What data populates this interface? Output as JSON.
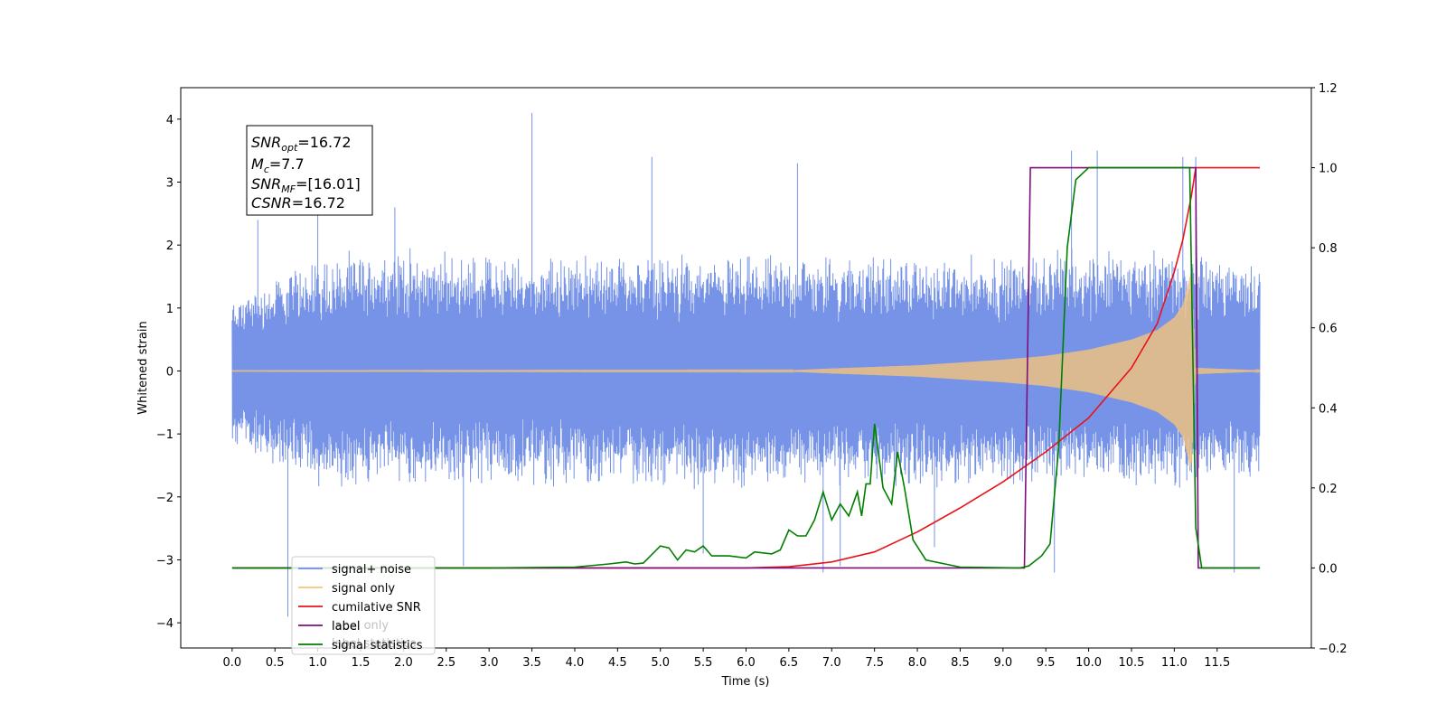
{
  "chart_data": {
    "type": "line",
    "xlabel": "Time (s)",
    "ylabel": "Whitened strain",
    "xlim": [
      -0.6,
      12.6
    ],
    "ylim": [
      -4.4,
      4.5
    ],
    "y2lim": [
      -0.2,
      1.2
    ],
    "grid": false,
    "legend_position": "lower-left",
    "x_ticks": [
      "0.0",
      "0.5",
      "1.0",
      "1.5",
      "2.0",
      "2.5",
      "3.0",
      "3.5",
      "4.0",
      "4.5",
      "5.0",
      "5.5",
      "6.0",
      "6.5",
      "7.0",
      "7.5",
      "8.0",
      "8.5",
      "9.0",
      "9.5",
      "10.0",
      "10.5",
      "11.0",
      "11.5"
    ],
    "y_ticks": [
      "4",
      "3",
      "2",
      "1",
      "0",
      "−1",
      "−2",
      "−3",
      "−4"
    ],
    "y2_ticks": [
      "1.2",
      "1.0",
      "0.8",
      "0.6",
      "0.4",
      "0.2",
      "0.0",
      "−0.2"
    ],
    "annotation": {
      "lines": [
        {
          "base": "SNR",
          "sub": "opt",
          "value": "=16.72"
        },
        {
          "base": "M",
          "sub": "c",
          "value": "=7.7"
        },
        {
          "base": "SNR",
          "sub": "MF",
          "value": "=[16.01]"
        },
        {
          "base": "CSNR",
          "sub": "",
          "value": "=16.72"
        }
      ]
    },
    "series": [
      {
        "name": "signal+ noise",
        "color": "#6f8de6",
        "axis": "left",
        "envelope_upper": [
          [
            0.0,
            1.2
          ],
          [
            1.0,
            1.9
          ],
          [
            2.0,
            2.0
          ],
          [
            3.0,
            1.9
          ],
          [
            4.0,
            1.9
          ],
          [
            5.0,
            1.9
          ],
          [
            6.0,
            1.9
          ],
          [
            7.0,
            1.9
          ],
          [
            8.0,
            1.9
          ],
          [
            9.0,
            1.9
          ],
          [
            10.0,
            2.0
          ],
          [
            11.0,
            2.0
          ],
          [
            12.0,
            1.8
          ]
        ],
        "envelope_lower": [
          [
            0.0,
            -1.2
          ],
          [
            1.0,
            -1.9
          ],
          [
            2.0,
            -1.9
          ],
          [
            3.0,
            -1.9
          ],
          [
            4.0,
            -1.9
          ],
          [
            5.0,
            -1.9
          ],
          [
            6.0,
            -1.9
          ],
          [
            7.0,
            -1.9
          ],
          [
            8.0,
            -1.9
          ],
          [
            9.0,
            -1.9
          ],
          [
            10.0,
            -1.9
          ],
          [
            11.0,
            -1.9
          ],
          [
            12.0,
            -1.8
          ]
        ],
        "peaks": [
          [
            0.3,
            2.4
          ],
          [
            0.65,
            -3.9
          ],
          [
            1.0,
            2.7
          ],
          [
            1.9,
            2.6
          ],
          [
            2.7,
            -3.1
          ],
          [
            3.5,
            4.1
          ],
          [
            4.9,
            3.4
          ],
          [
            5.5,
            -2.9
          ],
          [
            6.6,
            3.3
          ],
          [
            6.9,
            -3.2
          ],
          [
            7.1,
            -3.1
          ],
          [
            8.2,
            -2.8
          ],
          [
            9.6,
            -3.2
          ],
          [
            9.8,
            3.5
          ],
          [
            10.1,
            3.5
          ],
          [
            11.1,
            3.4
          ],
          [
            11.25,
            3.4
          ],
          [
            11.7,
            -3.2
          ]
        ]
      },
      {
        "name": "signal only",
        "color": "#f5c47c",
        "axis": "left",
        "envelope": [
          [
            0.0,
            0.005
          ],
          [
            6.5,
            0.01
          ],
          [
            7.0,
            0.04
          ],
          [
            8.0,
            0.09
          ],
          [
            9.0,
            0.18
          ],
          [
            9.5,
            0.24
          ],
          [
            10.0,
            0.34
          ],
          [
            10.5,
            0.5
          ],
          [
            10.8,
            0.65
          ],
          [
            11.0,
            0.85
          ],
          [
            11.1,
            1.05
          ],
          [
            11.2,
            1.6
          ],
          [
            11.25,
            0.05
          ],
          [
            12.0,
            0.01
          ]
        ]
      },
      {
        "name": "cumilative SNR",
        "color": "#e8141a",
        "axis": "right",
        "points": [
          [
            0.0,
            0.0
          ],
          [
            6.0,
            0.0
          ],
          [
            6.5,
            0.003
          ],
          [
            7.0,
            0.015
          ],
          [
            7.5,
            0.04
          ],
          [
            8.0,
            0.09
          ],
          [
            8.5,
            0.15
          ],
          [
            9.0,
            0.215
          ],
          [
            9.5,
            0.29
          ],
          [
            10.0,
            0.375
          ],
          [
            10.5,
            0.5
          ],
          [
            10.8,
            0.61
          ],
          [
            11.0,
            0.74
          ],
          [
            11.1,
            0.82
          ],
          [
            11.2,
            0.93
          ],
          [
            11.25,
            1.0
          ],
          [
            12.0,
            1.0
          ]
        ]
      },
      {
        "name": "label",
        "color": "#7f0f7e",
        "axis": "right",
        "points": [
          [
            0.0,
            0.0
          ],
          [
            9.25,
            0.0
          ],
          [
            9.32,
            1.0
          ],
          [
            11.25,
            1.0
          ],
          [
            11.28,
            0.0
          ],
          [
            12.0,
            0.0
          ]
        ]
      },
      {
        "name": "signal statistics",
        "color": "#007f00",
        "axis": "right",
        "points": [
          [
            0.0,
            0.0
          ],
          [
            3.0,
            0.0
          ],
          [
            4.0,
            0.002
          ],
          [
            4.4,
            0.01
          ],
          [
            4.6,
            0.015
          ],
          [
            4.7,
            0.01
          ],
          [
            4.8,
            0.012
          ],
          [
            5.0,
            0.055
          ],
          [
            5.1,
            0.05
          ],
          [
            5.2,
            0.02
          ],
          [
            5.3,
            0.045
          ],
          [
            5.4,
            0.04
          ],
          [
            5.5,
            0.055
          ],
          [
            5.6,
            0.03
          ],
          [
            5.8,
            0.03
          ],
          [
            6.0,
            0.025
          ],
          [
            6.1,
            0.04
          ],
          [
            6.3,
            0.035
          ],
          [
            6.4,
            0.045
          ],
          [
            6.5,
            0.095
          ],
          [
            6.6,
            0.08
          ],
          [
            6.7,
            0.08
          ],
          [
            6.8,
            0.12
          ],
          [
            6.9,
            0.19
          ],
          [
            7.0,
            0.12
          ],
          [
            7.1,
            0.16
          ],
          [
            7.2,
            0.13
          ],
          [
            7.3,
            0.19
          ],
          [
            7.35,
            0.13
          ],
          [
            7.4,
            0.21
          ],
          [
            7.45,
            0.21
          ],
          [
            7.5,
            0.36
          ],
          [
            7.6,
            0.2
          ],
          [
            7.7,
            0.16
          ],
          [
            7.77,
            0.29
          ],
          [
            7.85,
            0.2
          ],
          [
            7.95,
            0.07
          ],
          [
            8.1,
            0.02
          ],
          [
            8.5,
            0.002
          ],
          [
            9.2,
            0.0
          ],
          [
            9.3,
            0.005
          ],
          [
            9.45,
            0.03
          ],
          [
            9.55,
            0.06
          ],
          [
            9.65,
            0.3
          ],
          [
            9.75,
            0.8
          ],
          [
            9.85,
            0.97
          ],
          [
            10.0,
            1.0
          ],
          [
            11.18,
            1.0
          ],
          [
            11.25,
            0.1
          ],
          [
            11.32,
            0.0
          ],
          [
            12.0,
            0.0
          ]
        ]
      }
    ],
    "legend": [
      {
        "label": "signal+ noise",
        "color": "#6f8de6"
      },
      {
        "label": "signal only",
        "color": "#f5c47c"
      },
      {
        "label": "cumilative SNR",
        "color": "#e8141a"
      },
      {
        "label": "label",
        "color": "#7f0f7e"
      },
      {
        "label": "signal statistics",
        "color": "#007f00"
      }
    ],
    "occluded_legend_text": [
      "label only",
      "label statistics"
    ]
  }
}
